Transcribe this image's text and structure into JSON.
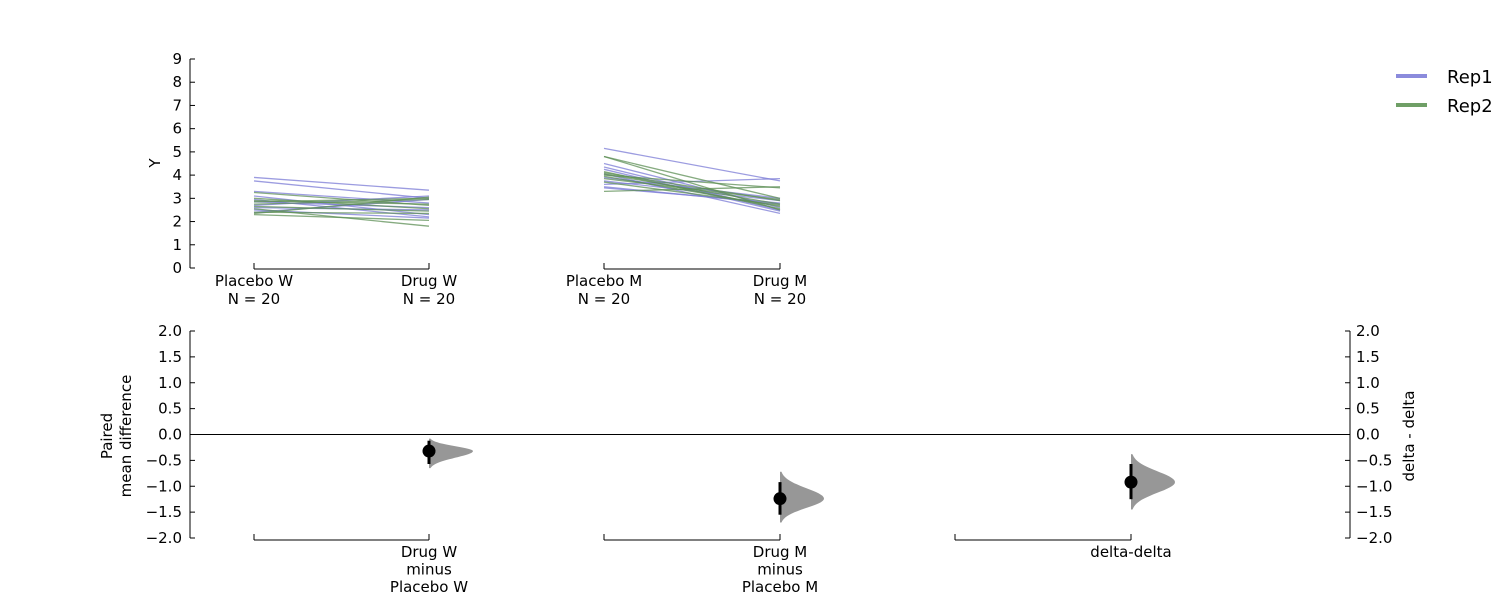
{
  "chart_data": [
    {
      "type": "line",
      "ylabel": "Y",
      "ylim": [
        0,
        9
      ],
      "yticks": [
        "0",
        "1",
        "2",
        "3",
        "4",
        "5",
        "6",
        "7",
        "8",
        "9"
      ],
      "groups": [
        {
          "label_lines": [
            "Placebo W",
            "N = 20"
          ]
        },
        {
          "label_lines": [
            "Drug W",
            "N = 20"
          ]
        },
        {
          "label_lines": [
            "Placebo M",
            "N = 20"
          ]
        },
        {
          "label_lines": [
            "Drug M",
            "N = 20"
          ]
        }
      ],
      "legend": {
        "position": "top-right",
        "entries": [
          {
            "name": "Rep1",
            "color": "#8b8bdc"
          },
          {
            "name": "Rep2",
            "color": "#6f9f66"
          }
        ]
      },
      "series": [
        {
          "name": "Rep1",
          "color": "#7b7bd6",
          "pairs_W": [
            [
              3.9,
              3.35
            ],
            [
              3.75,
              3.0
            ],
            [
              3.3,
              2.8
            ],
            [
              3.1,
              2.3
            ],
            [
              2.95,
              2.2
            ],
            [
              2.85,
              2.6
            ],
            [
              2.7,
              3.1
            ],
            [
              2.6,
              2.5
            ],
            [
              2.4,
              2.95
            ],
            [
              2.5,
              2.15
            ]
          ],
          "pairs_M": [
            [
              5.15,
              3.75
            ],
            [
              4.5,
              2.6
            ],
            [
              4.25,
              2.45
            ],
            [
              4.05,
              2.35
            ],
            [
              3.9,
              3.0
            ],
            [
              3.75,
              2.9
            ],
            [
              3.6,
              3.85
            ],
            [
              3.5,
              2.75
            ],
            [
              3.45,
              2.8
            ],
            [
              4.35,
              2.5
            ]
          ]
        },
        {
          "name": "Rep2",
          "color": "#5e8f56",
          "pairs_W": [
            [
              3.0,
              2.55
            ],
            [
              2.9,
              2.75
            ],
            [
              2.75,
              2.95
            ],
            [
              2.55,
              1.8
            ],
            [
              2.4,
              2.35
            ],
            [
              2.3,
              2.05
            ],
            [
              2.35,
              3.05
            ],
            [
              3.25,
              2.7
            ],
            [
              2.65,
              2.45
            ],
            [
              2.85,
              3.0
            ]
          ],
          "pairs_M": [
            [
              4.8,
              2.5
            ],
            [
              4.8,
              3.0
            ],
            [
              4.15,
              2.55
            ],
            [
              4.0,
              3.45
            ],
            [
              4.05,
              2.75
            ],
            [
              3.95,
              2.65
            ],
            [
              3.85,
              2.95
            ],
            [
              3.3,
              3.5
            ],
            [
              3.7,
              2.7
            ],
            [
              4.1,
              2.9
            ]
          ]
        }
      ]
    },
    {
      "type": "scatter",
      "ylabel_lines": [
        "Paired",
        "mean difference"
      ],
      "ylim": [
        -2,
        2
      ],
      "yticks": [
        "-2.0",
        "-1.5",
        "-1.0",
        "-0.5",
        "0.0",
        "0.5",
        "1.0",
        "1.5",
        "2.0"
      ],
      "y2label": "delta - delta",
      "y2ticks": [
        "-2.0",
        "-1.5",
        "-1.0",
        "-0.5",
        "0.0",
        "0.5",
        "1.0",
        "1.5",
        "2.0"
      ],
      "groups": [
        {
          "label_lines": [
            "Drug W",
            "minus",
            "Placebo W"
          ]
        },
        {
          "label_lines": [
            "Drug M",
            "minus",
            "Placebo M"
          ]
        },
        {
          "label_lines": [
            "delta-delta"
          ]
        }
      ],
      "estimates": [
        {
          "mean": -0.32,
          "ci": [
            -0.57,
            -0.12
          ],
          "dist_range": [
            -0.65,
            -0.08
          ]
        },
        {
          "mean": -1.24,
          "ci": [
            -1.55,
            -0.92
          ],
          "dist_range": [
            -1.7,
            -0.72
          ]
        },
        {
          "mean": -0.92,
          "ci": [
            -1.25,
            -0.57
          ],
          "dist_range": [
            -1.45,
            -0.38
          ]
        }
      ]
    }
  ]
}
